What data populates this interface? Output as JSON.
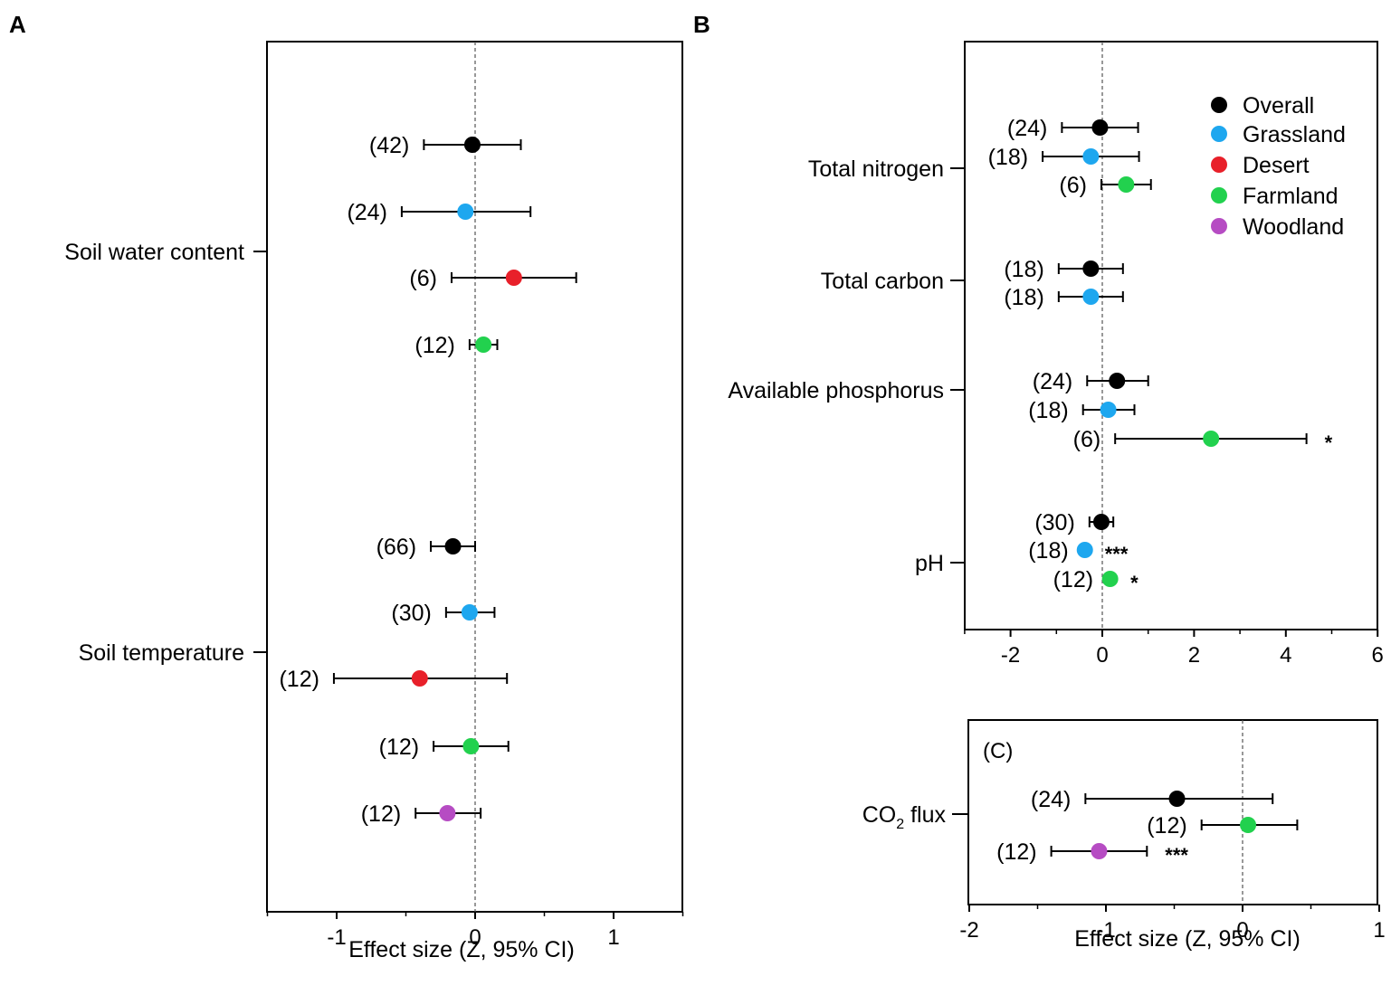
{
  "colors": {
    "Overall": "#000000",
    "Grassland": "#1ea7ef",
    "Desert": "#e8202a",
    "Farmland": "#22d14e",
    "Woodland": "#b64cc3"
  },
  "legend": [
    "Overall",
    "Grassland",
    "Desert",
    "Farmland",
    "Woodland"
  ],
  "chart_data": [
    {
      "id": "A",
      "type": "forest",
      "panel_label": "A",
      "xlabel": "Effect size (Z, 95% CI)",
      "xlim": [
        -1.5,
        1.5
      ],
      "xticks": [
        "-1",
        "0",
        "1"
      ],
      "xtick_values": [
        -1,
        0,
        1
      ],
      "groups": [
        {
          "label": "Soil water content",
          "rows": [
            {
              "group": "Overall",
              "n": "(42)",
              "mean": -0.02,
              "lo": -0.37,
              "hi": 0.33,
              "sig": ""
            },
            {
              "group": "Grassland",
              "n": "(24)",
              "mean": -0.07,
              "lo": -0.53,
              "hi": 0.4,
              "sig": ""
            },
            {
              "group": "Desert",
              "n": "(6)",
              "mean": 0.28,
              "lo": -0.17,
              "hi": 0.73,
              "sig": ""
            },
            {
              "group": "Farmland",
              "n": "(12)",
              "mean": 0.06,
              "lo": -0.04,
              "hi": 0.16,
              "sig": ""
            }
          ]
        },
        {
          "label": "Soil temperature",
          "rows": [
            {
              "group": "Overall",
              "n": "(66)",
              "mean": -0.16,
              "lo": -0.32,
              "hi": 0.0,
              "sig": ""
            },
            {
              "group": "Grassland",
              "n": "(30)",
              "mean": -0.04,
              "lo": -0.21,
              "hi": 0.14,
              "sig": ""
            },
            {
              "group": "Desert",
              "n": "(12)",
              "mean": -0.4,
              "lo": -1.02,
              "hi": 0.23,
              "sig": ""
            },
            {
              "group": "Farmland",
              "n": "(12)",
              "mean": -0.03,
              "lo": -0.3,
              "hi": 0.24,
              "sig": ""
            },
            {
              "group": "Woodland",
              "n": "(12)",
              "mean": -0.2,
              "lo": -0.43,
              "hi": 0.04,
              "sig": ""
            }
          ]
        }
      ]
    },
    {
      "id": "B",
      "type": "forest",
      "panel_label": "B",
      "xlabel": "",
      "xlim": [
        -3,
        6
      ],
      "xticks": [
        "-2",
        "0",
        "2",
        "4",
        "6"
      ],
      "xtick_values": [
        -2,
        0,
        2,
        4,
        6
      ],
      "groups": [
        {
          "label": "Total nitrogen",
          "rows": [
            {
              "group": "Overall",
              "n": "(24)",
              "mean": -0.05,
              "lo": -0.88,
              "hi": 0.78,
              "sig": ""
            },
            {
              "group": "Grassland",
              "n": "(18)",
              "mean": -0.25,
              "lo": -1.3,
              "hi": 0.8,
              "sig": ""
            },
            {
              "group": "Farmland",
              "n": "(6)",
              "mean": 0.52,
              "lo": -0.02,
              "hi": 1.06,
              "sig": ""
            }
          ]
        },
        {
          "label": "Total carbon",
          "rows": [
            {
              "group": "Overall",
              "n": "(18)",
              "mean": -0.25,
              "lo": -0.95,
              "hi": 0.45,
              "sig": ""
            },
            {
              "group": "Grassland",
              "n": "(18)",
              "mean": -0.25,
              "lo": -0.95,
              "hi": 0.45,
              "sig": ""
            }
          ]
        },
        {
          "label": "Available phosphorus",
          "rows": [
            {
              "group": "Overall",
              "n": "(24)",
              "mean": 0.32,
              "lo": -0.33,
              "hi": 1.0,
              "sig": ""
            },
            {
              "group": "Grassland",
              "n": "(18)",
              "mean": 0.13,
              "lo": -0.42,
              "hi": 0.7,
              "sig": ""
            },
            {
              "group": "Farmland",
              "n": "(6)",
              "mean": 2.37,
              "lo": 0.28,
              "hi": 4.45,
              "sig": "*"
            }
          ]
        },
        {
          "label": "pH",
          "rows": [
            {
              "group": "Overall",
              "n": "(30)",
              "mean": -0.02,
              "lo": -0.28,
              "hi": 0.24,
              "sig": ""
            },
            {
              "group": "Grassland",
              "n": "(18)",
              "mean": -0.38,
              "lo": -0.42,
              "hi": -0.34,
              "sig": "***"
            },
            {
              "group": "Farmland",
              "n": "(12)",
              "mean": 0.17,
              "lo": 0.12,
              "hi": 0.22,
              "sig": "*"
            }
          ]
        }
      ]
    },
    {
      "id": "C",
      "type": "forest",
      "panel_label": "(C)",
      "xlabel": "Effect size (Z, 95% CI)",
      "xlim": [
        -2,
        1
      ],
      "xticks": [
        "-2",
        "-1",
        "0",
        "1"
      ],
      "xtick_values": [
        -2,
        -1,
        0,
        1
      ],
      "groups": [
        {
          "label": "CO2 flux",
          "label_main": "CO",
          "label_sub": "2",
          "label_tail": " flux",
          "rows": [
            {
              "group": "Overall",
              "n": "(24)",
              "mean": -0.48,
              "lo": -1.15,
              "hi": 0.22,
              "sig": ""
            },
            {
              "group": "Farmland",
              "n": "(12)",
              "mean": 0.04,
              "lo": -0.3,
              "hi": 0.4,
              "sig": ""
            },
            {
              "group": "Woodland",
              "n": "(12)",
              "mean": -1.05,
              "lo": -1.4,
              "hi": -0.7,
              "sig": "***"
            }
          ]
        }
      ]
    }
  ]
}
